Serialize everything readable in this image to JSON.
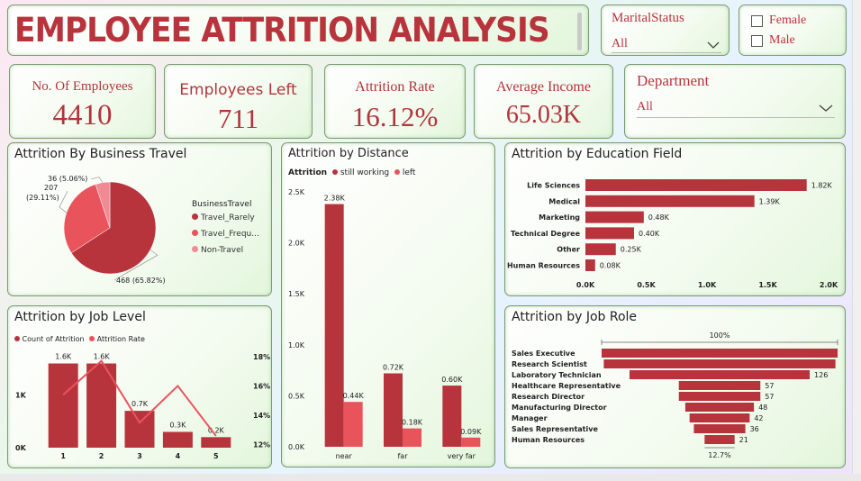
{
  "header": {
    "title": "EMPLOYEE ATTRITION ANALYSIS"
  },
  "filters": {
    "marital": {
      "label": "MaritalStatus",
      "value": "All"
    },
    "gender": {
      "options": [
        "Female",
        "Male"
      ]
    },
    "department": {
      "label": "Department",
      "value": "All"
    }
  },
  "kpis": [
    {
      "label": "No. Of Employees",
      "value": "4410"
    },
    {
      "label": "Employees Left",
      "value": "711"
    },
    {
      "label": "Attrition Rate",
      "value": "16.12%"
    },
    {
      "label": "Average Income",
      "value": "65.03K"
    }
  ],
  "colors": {
    "primary": "#b8343d",
    "secondary": "#e9535c",
    "tertiary": "#f08a93"
  },
  "chart_data": [
    {
      "id": "business_travel",
      "type": "pie",
      "title": "Attrition By Business Travel",
      "legend_title": "BusinessTravel",
      "legend": "right",
      "slices": [
        {
          "name": "Travel_Rarely",
          "legend_label": "Travel_Rarely",
          "value": 468,
          "label": "468 (65.82%)"
        },
        {
          "name": "Travel_Frequently",
          "legend_label": "Travel_Frequ...",
          "value": 207,
          "label_line1": "207",
          "label_line2": "(29.11%)"
        },
        {
          "name": "Non-Travel",
          "legend_label": "Non-Travel",
          "value": 36,
          "label": "36 (5.06%)"
        }
      ]
    },
    {
      "id": "distance",
      "type": "bar",
      "title": "Attrition by Distance",
      "legend_title": "Attrition",
      "legend": "top-left",
      "categories": [
        "near",
        "far",
        "very far"
      ],
      "series": [
        {
          "name": "still working",
          "values": [
            2380,
            720,
            600
          ],
          "labels": [
            "2.38K",
            "0.72K",
            "0.60K"
          ]
        },
        {
          "name": "left",
          "values": [
            440,
            180,
            90
          ],
          "labels": [
            "0.44K",
            "0.18K",
            "0.09K"
          ]
        }
      ],
      "ylim": [
        0,
        2500
      ],
      "yticks": [
        0,
        500,
        1000,
        1500,
        2000,
        2500
      ],
      "ytick_labels": [
        "0.0K",
        "0.5K",
        "1.0K",
        "1.5K",
        "2.0K",
        "2.5K"
      ]
    },
    {
      "id": "education_field",
      "type": "bar",
      "orientation": "horizontal",
      "title": "Attrition by Education Field",
      "categories": [
        "Life Sciences",
        "Medical",
        "Marketing",
        "Technical Degree",
        "Other",
        "Human Resources"
      ],
      "values": [
        1820,
        1390,
        480,
        400,
        250,
        80
      ],
      "labels": [
        "1.82K",
        "1.39K",
        "0.48K",
        "0.40K",
        "0.25K",
        "0.08K"
      ],
      "xlim": [
        0,
        2000
      ],
      "xticks": [
        0,
        500,
        1000,
        1500,
        2000
      ],
      "xtick_labels": [
        "0.0K",
        "0.5K",
        "1.0K",
        "1.5K",
        "2.0K"
      ]
    },
    {
      "id": "job_level",
      "type": "bar",
      "title": "Attrition by Job Level",
      "legend": "top-left",
      "categories": [
        "1",
        "2",
        "3",
        "4",
        "5"
      ],
      "series": [
        {
          "name": "Count of Attrition",
          "values": [
            1600,
            1600,
            700,
            300,
            200
          ],
          "labels": [
            "1.6K",
            "1.6K",
            "0.7K",
            "0.3K",
            "0.2K"
          ]
        },
        {
          "name": "Attrition Rate",
          "type": "line",
          "values": [
            15.4,
            17.7,
            13.5,
            16.0,
            12.6
          ]
        }
      ],
      "ylim": [
        0,
        1900
      ],
      "yticks": [
        0,
        1000
      ],
      "ytick_labels": [
        "0K",
        "1K"
      ],
      "y2lim": [
        11.8,
        18.6
      ],
      "y2ticks": [
        12,
        14,
        16,
        18
      ],
      "y2tick_labels": [
        "12%",
        "14%",
        "16%",
        "18%"
      ]
    },
    {
      "id": "job_role",
      "type": "funnel",
      "title": "Attrition by Job Role",
      "top_label": "100%",
      "bottom_label": "12.7%",
      "categories": [
        "Sales Executive",
        "Research Scientist",
        "Laboratory Technician",
        "Healthcare Representative",
        "Research Director",
        "Manufacturing Director",
        "Manager",
        "Sales Representative",
        "Human Resources"
      ],
      "values": [
        165,
        162,
        126,
        57,
        57,
        48,
        42,
        36,
        21
      ],
      "labels": [
        "",
        "",
        "126",
        "57",
        "57",
        "48",
        "42",
        "36",
        "21"
      ]
    }
  ]
}
